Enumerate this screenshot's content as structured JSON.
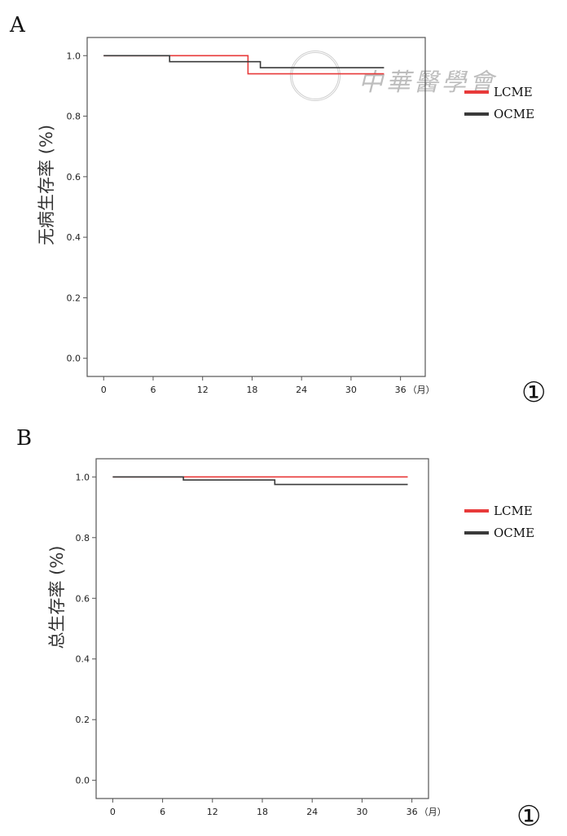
{
  "figure_number": "①",
  "watermark": "中華醫學會",
  "chart_data": [
    {
      "panel": "A",
      "type": "line",
      "step": true,
      "ylabel": "无病生存率 (%)",
      "xlabel": "",
      "x_unit": "（月）",
      "xticks": [
        0,
        6,
        12,
        18,
        24,
        30,
        36
      ],
      "xlim": [
        -2,
        39
      ],
      "yticks": [
        0.0,
        0.2,
        0.4,
        0.6,
        0.8,
        1.0
      ],
      "ytick_labels": [
        "0.0",
        "0.2",
        "0.4",
        "0.6",
        "0.8",
        "1.0"
      ],
      "ylim": [
        -0.06,
        1.06
      ],
      "legend_position": "right",
      "series": [
        {
          "name": "LCME",
          "color": "#e83a3a",
          "points": [
            [
              0,
              1.0
            ],
            [
              17.5,
              1.0
            ],
            [
              17.5,
              0.94
            ],
            [
              34,
              0.94
            ]
          ]
        },
        {
          "name": "OCME",
          "color": "#3a3a3a",
          "points": [
            [
              0,
              1.0
            ],
            [
              8,
              1.0
            ],
            [
              8,
              0.98
            ],
            [
              19,
              0.98
            ],
            [
              19,
              0.96
            ],
            [
              34,
              0.96
            ]
          ]
        }
      ]
    },
    {
      "panel": "B",
      "type": "line",
      "step": true,
      "ylabel": "总生存率 (%)",
      "xlabel": "",
      "x_unit": "（月）",
      "xticks": [
        0,
        6,
        12,
        18,
        24,
        30,
        36
      ],
      "xlim": [
        -2,
        38
      ],
      "yticks": [
        0.0,
        0.2,
        0.4,
        0.6,
        0.8,
        1.0
      ],
      "ytick_labels": [
        "0.0",
        "0.2",
        "0.4",
        "0.6",
        "0.8",
        "1.0"
      ],
      "ylim": [
        -0.06,
        1.06
      ],
      "legend_position": "right",
      "series": [
        {
          "name": "LCME",
          "color": "#e83a3a",
          "points": [
            [
              0,
              1.0
            ],
            [
              35.5,
              1.0
            ]
          ]
        },
        {
          "name": "OCME",
          "color": "#3a3a3a",
          "points": [
            [
              0,
              1.0
            ],
            [
              8.5,
              1.0
            ],
            [
              8.5,
              0.99
            ],
            [
              19.5,
              0.99
            ],
            [
              19.5,
              0.975
            ],
            [
              35.5,
              0.975
            ]
          ]
        }
      ]
    }
  ]
}
